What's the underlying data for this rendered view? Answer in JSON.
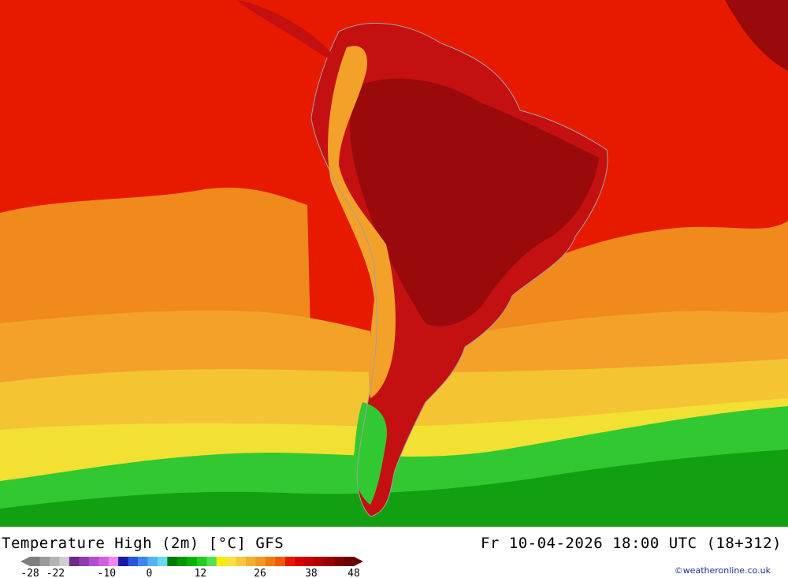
{
  "map": {
    "title": "Temperature High (2m) [°C] GFS",
    "valid_time": "Fr 10-04-2026 18:00 UTC (18+312)",
    "credit": "©weatheronline.co.uk",
    "legend": {
      "tick_labels": [
        "-28",
        "-22",
        "-10",
        "0",
        "12",
        "26",
        "38",
        "48"
      ],
      "tick_values": [
        -28,
        -22,
        -10,
        0,
        12,
        26,
        38,
        48
      ],
      "colors": [
        "#7f7f7f",
        "#9a9a9a",
        "#b4b4b4",
        "#cfcfcf",
        "#6a2a8a",
        "#8c3cab",
        "#ad4fcc",
        "#d05ee0",
        "#ef86f1",
        "#1a1aa8",
        "#2a54e0",
        "#3f86f0",
        "#52b4f4",
        "#6ad8f8",
        "#007a00",
        "#009800",
        "#00b400",
        "#24cc24",
        "#52e052",
        "#f0f000",
        "#f8e040",
        "#f8c838",
        "#f4b030",
        "#f09820",
        "#f07810",
        "#f05a00",
        "#e81800",
        "#d80000",
        "#c40000",
        "#ae0000",
        "#980000",
        "#800000",
        "#680000"
      ]
    },
    "palette": {
      "ocean_hot": "#e71a00",
      "ocean_warm": "#f08a1c",
      "ocean_mild": "#f4a12a",
      "ocean_cool": "#f4c432",
      "ocean_yellow": "#f2e032",
      "ocean_cold_green": "#32c832",
      "ocean_colder_green": "#12a012",
      "land_very_hot": "#9a0a0a",
      "land_hot": "#c41010",
      "border": "#a0a0a0"
    }
  }
}
